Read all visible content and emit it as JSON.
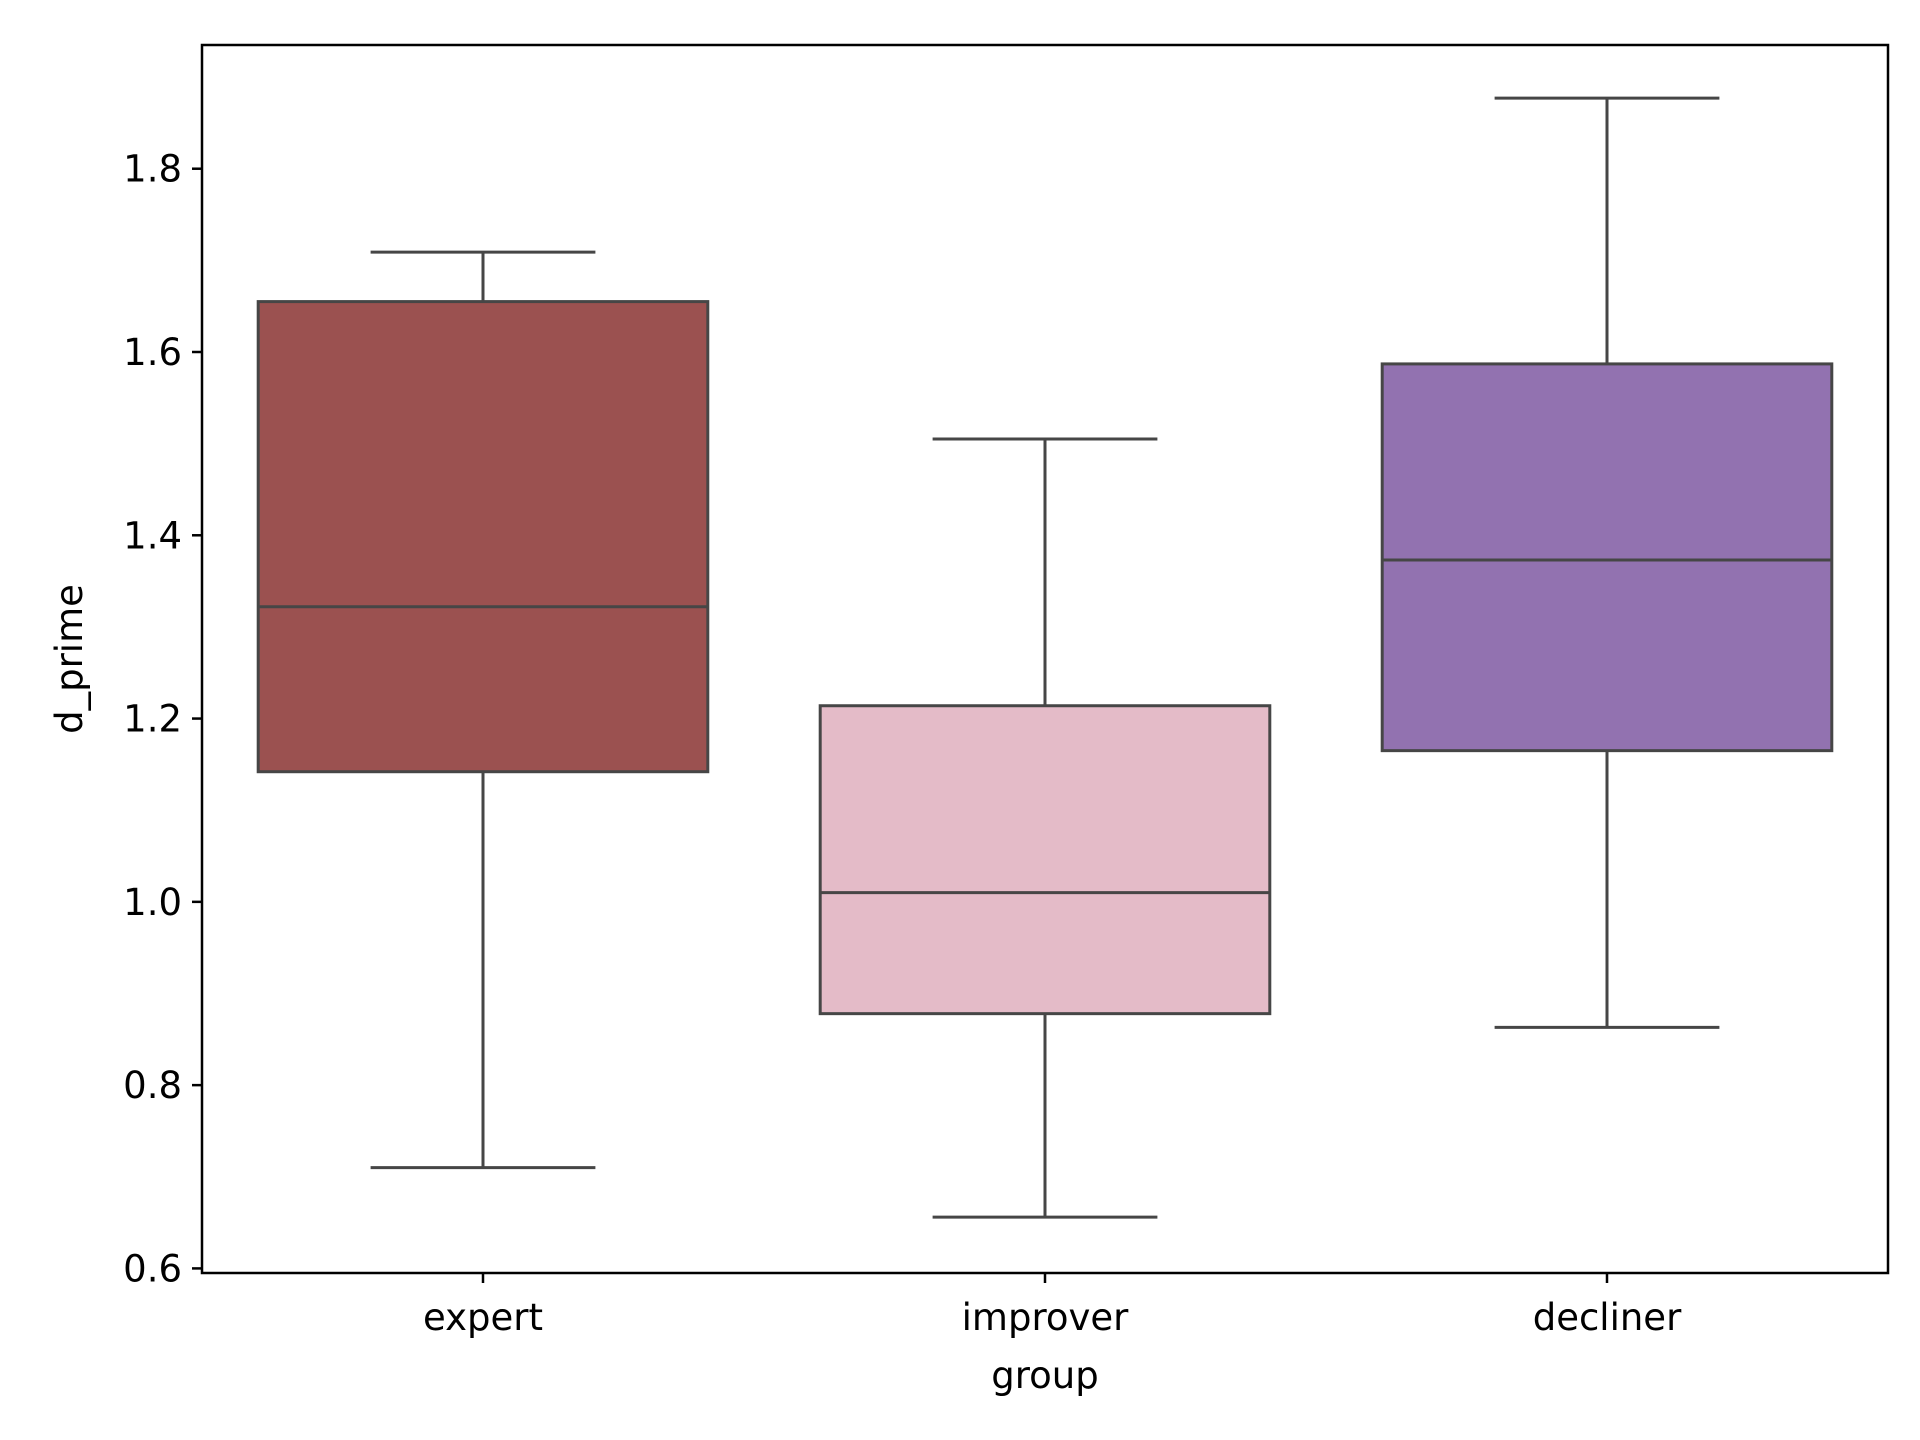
{
  "chart_data": {
    "type": "box",
    "xlabel": "group",
    "ylabel": "d_prime",
    "ylim": [
      0.595,
      1.935
    ],
    "yticks": [
      0.6,
      0.8,
      1.0,
      1.2,
      1.4,
      1.6,
      1.8
    ],
    "ytick_labels": [
      "0.6",
      "0.8",
      "1.0",
      "1.2",
      "1.4",
      "1.6",
      "1.8"
    ],
    "grid": false,
    "legend": "none",
    "categories": [
      "expert",
      "improver",
      "decliner"
    ],
    "boxes": [
      {
        "category": "expert",
        "whisker_low": 0.71,
        "q1": 1.142,
        "median": 1.322,
        "q3": 1.655,
        "whisker_high": 1.709,
        "color": "#9b5150"
      },
      {
        "category": "improver",
        "whisker_low": 0.656,
        "q1": 0.878,
        "median": 1.01,
        "q3": 1.214,
        "whisker_high": 1.505,
        "color": "#e4bbc8"
      },
      {
        "category": "decliner",
        "whisker_low": 0.863,
        "q1": 1.165,
        "median": 1.373,
        "q3": 1.587,
        "whisker_high": 1.877,
        "color": "#9272b0"
      }
    ],
    "line_color": "#464646"
  }
}
